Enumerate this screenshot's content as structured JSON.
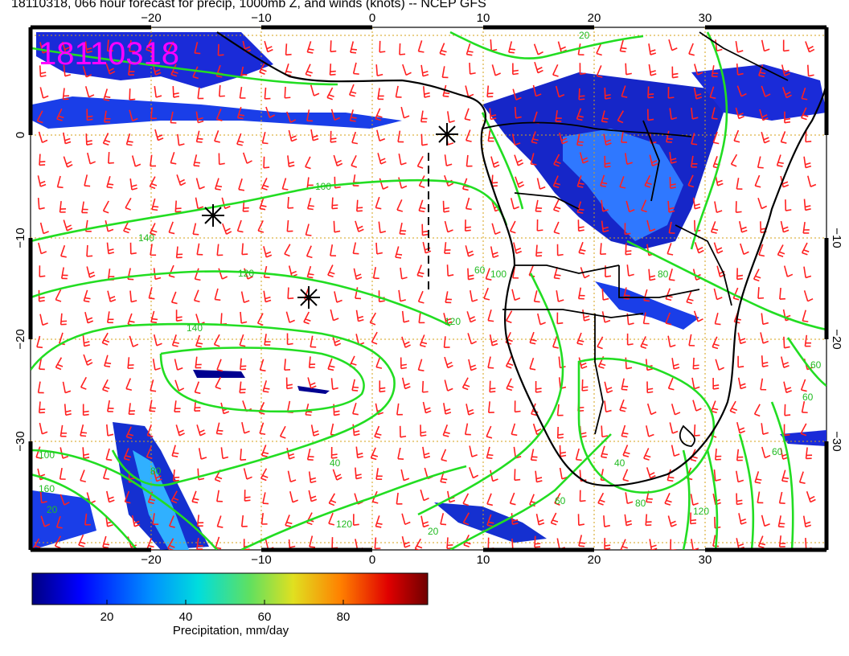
{
  "title": "18110318, 066 hour forecast for precip, 1000mb Z, and winds (knots) -- NCEP GFS",
  "stamp": "18110318",
  "axes": {
    "lon_ticks": [
      "−20",
      "−10",
      "0",
      "10",
      "20",
      "30"
    ],
    "lat_ticks": [
      "0",
      "−10",
      "−20",
      "−30"
    ],
    "lat_ticks_right": [
      "−10",
      "−20",
      "−30"
    ]
  },
  "contour_labels": [
    "100",
    "120",
    "140",
    "120",
    "140",
    "100",
    "60",
    "80",
    "60",
    "40",
    "120",
    "160",
    "100",
    "20",
    "60",
    "80",
    "20",
    "60",
    "60",
    "80",
    "120",
    "20",
    "40"
  ],
  "colorbar": {
    "title": "Precipitation, mm/day",
    "ticks": [
      "20",
      "40",
      "60",
      "80"
    ],
    "range": [
      0,
      100
    ]
  },
  "colors": {
    "contour": "#22dd22",
    "barb": "#ff2020",
    "grid": "#d4a017",
    "stamp": "#ff00ff",
    "coast": "#000000"
  },
  "markers": [
    "pressure-center-1",
    "pressure-center-2",
    "pressure-center-3"
  ]
}
